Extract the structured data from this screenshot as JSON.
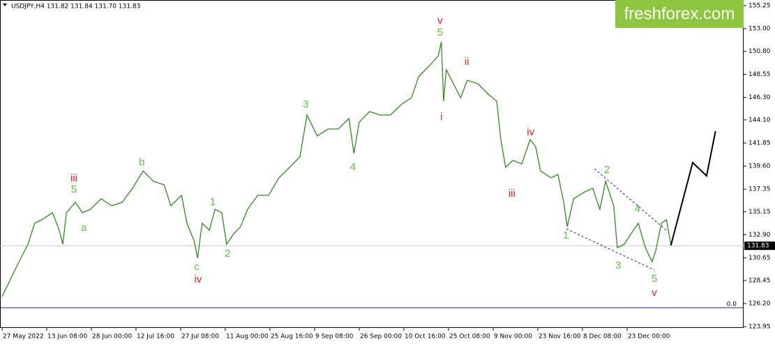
{
  "chart_data": {
    "type": "line",
    "title": "USDJPY,H4  131.82 131.84 131.70 131.83",
    "logo": "freshforex.com",
    "xlim": [
      -0.047,
      16.61
    ],
    "ylim": [
      123.82,
      155.79
    ],
    "xticks": [
      {
        "value": 0,
        "label": "27 May 2022"
      },
      {
        "value": 1,
        "label": "13 Jun 08:00"
      },
      {
        "value": 2,
        "label": "28 Jun 00:00"
      },
      {
        "value": 3,
        "label": "12 Jul 16:00"
      },
      {
        "value": 4,
        "label": "27 Jul 08:00"
      },
      {
        "value": 5,
        "label": "11 Aug 00:00"
      },
      {
        "value": 6,
        "label": "25 Aug 16:00"
      },
      {
        "value": 7,
        "label": "9 Sep 08:00"
      },
      {
        "value": 8,
        "label": "26 Sep 00:00"
      },
      {
        "value": 9,
        "label": "10 Oct 16:00"
      },
      {
        "value": 10,
        "label": "25 Oct 08:00"
      },
      {
        "value": 11,
        "label": "9 Nov 00:00"
      },
      {
        "value": 12,
        "label": "23 Nov 16:00"
      },
      {
        "value": 13,
        "label": "8 Dec 08:00"
      },
      {
        "value": 14,
        "label": "23 Dec 00:00"
      }
    ],
    "yticks": [
      155.25,
      {
        "value": 153,
        "label": "153.00"
      },
      {
        "value": 150.8,
        "label": "150.80"
      },
      148.55,
      {
        "value": 146.3,
        "label": "146.30"
      },
      {
        "value": 144.1,
        "label": "144.10"
      },
      141.85,
      {
        "value": 139.6,
        "label": "139.60"
      },
      137.35,
      135.15,
      {
        "value": 132.9,
        "label": "132.90"
      },
      130.65,
      128.45,
      {
        "value": 126.2,
        "label": "126.20"
      },
      123.95
    ],
    "current_price": 131.83,
    "zero_level": {
      "value": 125.79,
      "label": "0.0"
    },
    "series": [
      {
        "color": "#2e8b1e",
        "x": [
          0,
          0.19,
          0.34,
          0.58,
          0.73,
          0.89,
          1.13,
          1.28,
          1.36,
          1.44,
          1.64,
          1.8,
          1.98,
          2.22,
          2.45,
          2.69,
          2.92,
          3.16,
          3.39,
          3.63,
          3.78,
          4.02,
          4.14,
          4.3,
          4.38,
          4.48,
          4.64,
          4.77,
          4.92,
          5.03,
          5.19,
          5.34,
          5.5,
          5.73,
          5.97,
          6.2,
          6.44,
          6.67,
          6.83,
          7.06,
          7.3,
          7.53,
          7.77,
          7.88,
          8,
          8.23,
          8.47,
          8.7,
          8.94,
          9.17,
          9.33,
          9.56,
          9.77,
          9.84,
          9.89,
          9.95,
          10.11,
          10.27,
          10.42,
          10.66,
          10.89,
          11.08,
          11.17,
          11.28,
          11.44,
          11.64,
          11.83,
          11.95,
          12.06,
          12.3,
          12.45,
          12.58,
          12.66,
          12.8,
          13.05,
          13.23,
          13.39,
          13.52,
          13.7,
          13.78,
          13.94,
          14.09,
          14.25,
          14.41,
          14.56,
          14.64,
          14.77,
          14.88,
          14.98
        ],
        "values": [
          126.88,
          128.58,
          129.94,
          131.98,
          134.03,
          134.37,
          135.05,
          133.35,
          131.98,
          135.05,
          136.07,
          135.05,
          135.39,
          136.41,
          135.73,
          136.07,
          137.43,
          139.13,
          138.11,
          137.77,
          135.73,
          136.75,
          134.03,
          132.32,
          130.62,
          134.03,
          133.35,
          135.39,
          135.05,
          131.98,
          133.01,
          133.69,
          135.39,
          136.75,
          136.75,
          138.45,
          139.47,
          140.49,
          144.57,
          142.53,
          143.21,
          143.21,
          144.23,
          140.83,
          143.89,
          144.91,
          144.57,
          144.57,
          145.59,
          146.27,
          148.31,
          149.33,
          150.35,
          151.71,
          145.93,
          148.99,
          147.63,
          146.27,
          147.97,
          147.63,
          146.61,
          145.93,
          142.19,
          139.47,
          140.15,
          139.81,
          142.19,
          141.51,
          139.13,
          138.45,
          138.79,
          136.07,
          133.69,
          136.41,
          137.09,
          137.43,
          135.39,
          138.11,
          135.73,
          131.64,
          131.98,
          133.01,
          134.03,
          131.64,
          130.28,
          131.3,
          134.03,
          134.37,
          131.98
        ]
      },
      {
        "color": "#000000",
        "x": [
          14.98,
          15.47,
          15.78,
          15.98
        ],
        "values": [
          131.85,
          139.94,
          138.65,
          143.0
        ]
      }
    ],
    "trendlines": [
      {
        "x": [
          12.64,
          14.61
        ],
        "y": [
          133.48,
          129.47
        ]
      },
      {
        "x": [
          13.27,
          14.88
        ],
        "y": [
          139.33,
          133.34
        ]
      }
    ],
    "annotations": [
      {
        "text": "iii",
        "x": 1.61,
        "y": 138.38,
        "color": "#e02020"
      },
      {
        "text": "5",
        "x": 1.61,
        "y": 137.29,
        "color": "#5cc43c"
      },
      {
        "text": "a",
        "x": 1.83,
        "y": 133.55,
        "color": "#5cc43c"
      },
      {
        "text": "b",
        "x": 3.13,
        "y": 139.94,
        "color": "#5cc43c"
      },
      {
        "text": "c",
        "x": 4.36,
        "y": 129.74,
        "color": "#5cc43c"
      },
      {
        "text": "iv",
        "x": 4.39,
        "y": 128.52,
        "color": "#e02020"
      },
      {
        "text": "1",
        "x": 4.72,
        "y": 136.07,
        "color": "#5cc43c"
      },
      {
        "text": "2",
        "x": 5.05,
        "y": 131.03,
        "color": "#5cc43c"
      },
      {
        "text": "3",
        "x": 6.8,
        "y": 145.59,
        "color": "#5cc43c"
      },
      {
        "text": "4",
        "x": 7.86,
        "y": 139.47,
        "color": "#5cc43c"
      },
      {
        "text": "v",
        "x": 9.81,
        "y": 153.75,
        "color": "#e02020"
      },
      {
        "text": "5",
        "x": 9.81,
        "y": 152.6,
        "color": "#5cc43c"
      },
      {
        "text": "i",
        "x": 9.84,
        "y": 144.37,
        "color": "#e02020"
      },
      {
        "text": "ii",
        "x": 10.41,
        "y": 149.74,
        "color": "#e02020"
      },
      {
        "text": "iv",
        "x": 11.84,
        "y": 142.87,
        "color": "#e02020"
      },
      {
        "text": "iii",
        "x": 11.42,
        "y": 136.88,
        "color": "#e02020"
      },
      {
        "text": "1",
        "x": 12.63,
        "y": 132.8,
        "color": "#5cc43c"
      },
      {
        "text": "2",
        "x": 13.55,
        "y": 139.2,
        "color": "#5cc43c"
      },
      {
        "text": "3",
        "x": 13.8,
        "y": 129.88,
        "color": "#5cc43c"
      },
      {
        "text": "4",
        "x": 14.23,
        "y": 135.39,
        "color": "#5cc43c"
      },
      {
        "text": "5",
        "x": 14.61,
        "y": 128.58,
        "color": "#5cc43c"
      },
      {
        "text": "v",
        "x": 14.61,
        "y": 127.22,
        "color": "#e02020"
      }
    ]
  }
}
